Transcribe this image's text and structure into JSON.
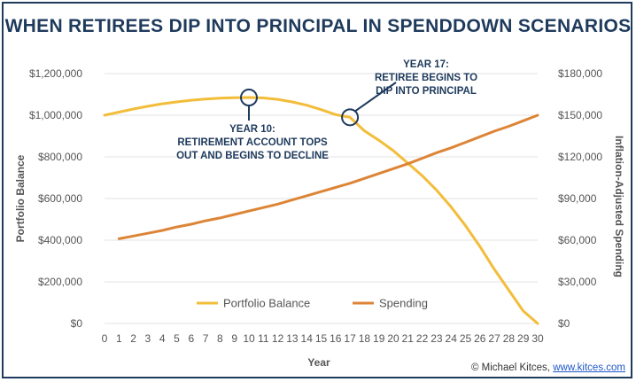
{
  "credit": {
    "prefix": "© Michael Kitces, ",
    "link": "www.kitces.com"
  },
  "chart_data": {
    "type": "line",
    "title": "WHEN RETIREES DIP INTO PRINCIPAL IN SPENDDOWN SCENARIOS",
    "xlabel": "Year",
    "ylabel": "Portfolio Balance",
    "ylabel_right": "Inflation-Adjusted Spending",
    "xlim": [
      0,
      30
    ],
    "ylim": [
      0,
      1200000
    ],
    "ylim_right": [
      0,
      180000
    ],
    "x_ticks": [
      "0",
      "1",
      "2",
      "3",
      "4",
      "5",
      "6",
      "7",
      "8",
      "9",
      "10",
      "11",
      "12",
      "13",
      "14",
      "15",
      "16",
      "17",
      "18",
      "19",
      "20",
      "21",
      "22",
      "23",
      "24",
      "25",
      "26",
      "27",
      "28",
      "29",
      "30"
    ],
    "y_ticks_left": [
      "$0",
      "$200,000",
      "$400,000",
      "$600,000",
      "$800,000",
      "$1,000,000",
      "$1,200,000"
    ],
    "y_ticks_right": [
      "$0",
      "$30,000",
      "$60,000",
      "$90,000",
      "$120,000",
      "$150,000",
      "$180,000"
    ],
    "grid": true,
    "legend_position": "bottom-center",
    "colors": {
      "portfolio": "#f2bd3a",
      "spending": "#dd8537",
      "grid": "#e3e3e3",
      "annotation": "#1e3a5c"
    },
    "series": [
      {
        "name": "Portfolio Balance",
        "axis": "left",
        "x": [
          0,
          1,
          2,
          3,
          4,
          5,
          6,
          7,
          8,
          9,
          10,
          11,
          12,
          13,
          14,
          15,
          16,
          17,
          18,
          19,
          20,
          21,
          22,
          23,
          24,
          25,
          26,
          27,
          28,
          29,
          30
        ],
        "values": [
          1000000,
          1015000,
          1030000,
          1043000,
          1055000,
          1064000,
          1072000,
          1078000,
          1082000,
          1084000,
          1085000,
          1083000,
          1076000,
          1064000,
          1048000,
          1027000,
          1003000,
          990000,
          925000,
          880000,
          830000,
          770000,
          710000,
          640000,
          560000,
          470000,
          370000,
          260000,
          160000,
          60000,
          0
        ]
      },
      {
        "name": "Spending",
        "axis": "right",
        "x": [
          1,
          2,
          3,
          4,
          5,
          6,
          7,
          8,
          9,
          10,
          11,
          12,
          13,
          14,
          15,
          16,
          17,
          18,
          19,
          20,
          21,
          22,
          23,
          24,
          25,
          26,
          27,
          28,
          29,
          30
        ],
        "values": [
          61000,
          63000,
          65000,
          67000,
          69500,
          71500,
          74000,
          76000,
          78500,
          81000,
          83500,
          86000,
          89000,
          92000,
          95000,
          98000,
          101000,
          104500,
          108000,
          111500,
          115000,
          119000,
          123000,
          126500,
          130500,
          134500,
          138500,
          142000,
          146000,
          150000
        ]
      }
    ],
    "annotations": [
      {
        "x": 10,
        "series": "Portfolio Balance",
        "lines": [
          "YEAR 10:",
          "RETIREMENT ACCOUNT TOPS",
          "OUT AND BEGINS TO DECLINE"
        ]
      },
      {
        "x": 17,
        "series": "Portfolio Balance",
        "lines": [
          "YEAR 17:",
          "RETIREE BEGINS TO",
          "DIP INTO PRINCIPAL"
        ]
      }
    ]
  }
}
